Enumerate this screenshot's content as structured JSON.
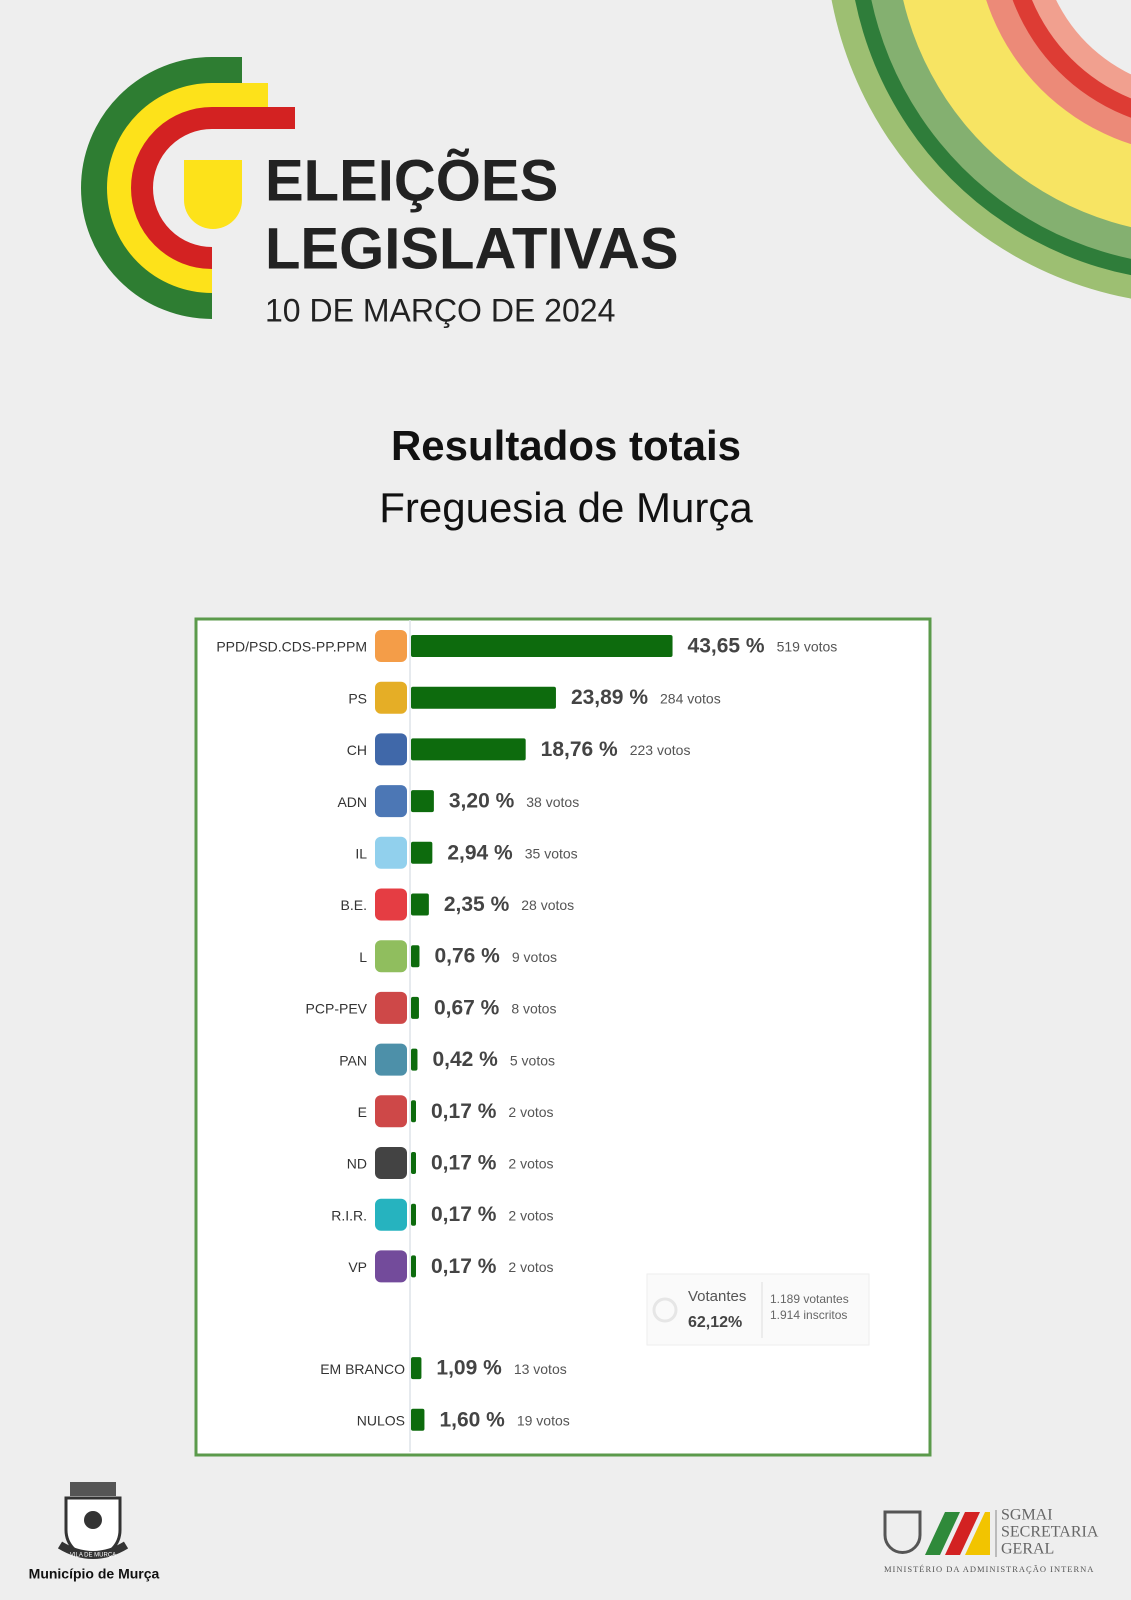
{
  "header": {
    "title_line1": "ELEIÇÕES",
    "title_line2": "LEGISLATIVAS",
    "date": "10 DE MARÇO DE 2024"
  },
  "heading": {
    "title": "Resultados totais",
    "subtitle": "Freguesia de Murça"
  },
  "chart_data": {
    "type": "hbar",
    "color": "#0d6b0d",
    "categories": [
      "PPD/PSD.CDS-PP.PPM",
      "PS",
      "CH",
      "ADN",
      "IL",
      "B.E.",
      "L",
      "PCP-PEV",
      "PAN",
      "E",
      "ND",
      "R.I.R.",
      "VP",
      "EM BRANCO",
      "NULOS"
    ],
    "values": [
      43.65,
      23.89,
      18.76,
      3.2,
      2.94,
      2.35,
      0.76,
      0.67,
      0.42,
      0.17,
      0.17,
      0.17,
      0.17,
      1.09,
      1.6
    ],
    "value_labels": [
      "43,65 %",
      "23,89 %",
      "18,76 %",
      "3,20 %",
      "2,94 %",
      "2,35 %",
      "0,76 %",
      "0,67 %",
      "0,42 %",
      "0,17 %",
      "0,17 %",
      "0,17 %",
      "0,17 %",
      "1,09 %",
      "1,60 %"
    ],
    "votes_labels": [
      "519 votos",
      "284 votos",
      "223 votos",
      "38 votos",
      "35 votos",
      "28 votos",
      "9 votos",
      "8 votos",
      "5 votos",
      "2 votos",
      "2 votos",
      "2 votos",
      "2 votos",
      "13 votos",
      "19 votos"
    ],
    "turnout": {
      "label": "Votantes",
      "value": 62.12,
      "value_label": "62,12%",
      "voters": "1.189 votantes",
      "registered": "1.914 inscritos"
    }
  },
  "footer": {
    "crest_text": "VILA DE MURÇA",
    "municipality": "Município de Murça",
    "sgmai": "SGMAI",
    "sgmai_line2": "SECRETARIA",
    "sgmai_line3": "GERAL",
    "ministry": "MINISTÉRIO DA ADMINISTRAÇÃO INTERNA"
  }
}
